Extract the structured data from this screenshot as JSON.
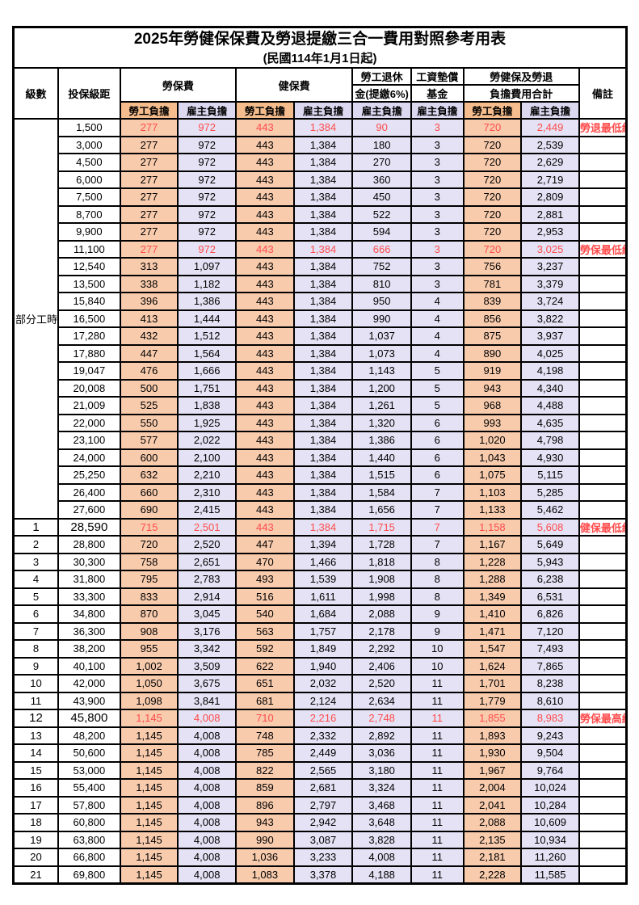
{
  "title": "2025年勞健保保費及勞退提繳三合一費用對照參考用表",
  "subtitle": "(民國114年1月1日起)",
  "header": {
    "level": "級數",
    "bracket": "投保級距",
    "labor_ins": "勞保費",
    "health_ins": "健保費",
    "pension_line1": "勞工退休",
    "pension_line2": "金(提繳6%)",
    "wage_fund_line1": "工資墊償",
    "wage_fund_line2": "基金",
    "total_line1": "勞健保及勞退",
    "total_line2": "負擔費用合計",
    "remark": "備註",
    "employee_burden": "勞工負擔",
    "employer_burden": "雇主負擔"
  },
  "part_time_label": "部分工時",
  "part_time_row_count": 23,
  "colors": {
    "header_employee_bg": "#F5BD8D",
    "header_employer_bg": "#DBD8F0",
    "data_employee_bg": "#F8CBAD",
    "data_employer_bg": "#E4E2F4",
    "highlight_text": "#FF4C4C",
    "border": "#000000"
  },
  "value_column_types": [
    "emp",
    "er",
    "emp",
    "er",
    "er",
    "er",
    "emp",
    "er"
  ],
  "rows": [
    {
      "level": "",
      "salary": "1,500",
      "values": [
        "277",
        "972",
        "443",
        "1,384",
        "90",
        "3",
        "720",
        "2,449"
      ],
      "remark": "勞退最低級距",
      "red": true,
      "big": false
    },
    {
      "level": "",
      "salary": "3,000",
      "values": [
        "277",
        "972",
        "443",
        "1,384",
        "180",
        "3",
        "720",
        "2,539"
      ],
      "remark": "",
      "red": false,
      "big": false
    },
    {
      "level": "",
      "salary": "4,500",
      "values": [
        "277",
        "972",
        "443",
        "1,384",
        "270",
        "3",
        "720",
        "2,629"
      ],
      "remark": "",
      "red": false,
      "big": false
    },
    {
      "level": "",
      "salary": "6,000",
      "values": [
        "277",
        "972",
        "443",
        "1,384",
        "360",
        "3",
        "720",
        "2,719"
      ],
      "remark": "",
      "red": false,
      "big": false
    },
    {
      "level": "",
      "salary": "7,500",
      "values": [
        "277",
        "972",
        "443",
        "1,384",
        "450",
        "3",
        "720",
        "2,809"
      ],
      "remark": "",
      "red": false,
      "big": false
    },
    {
      "level": "",
      "salary": "8,700",
      "values": [
        "277",
        "972",
        "443",
        "1,384",
        "522",
        "3",
        "720",
        "2,881"
      ],
      "remark": "",
      "red": false,
      "big": false
    },
    {
      "level": "",
      "salary": "9,900",
      "values": [
        "277",
        "972",
        "443",
        "1,384",
        "594",
        "3",
        "720",
        "2,953"
      ],
      "remark": "",
      "red": false,
      "big": false
    },
    {
      "level": "",
      "salary": "11,100",
      "values": [
        "277",
        "972",
        "443",
        "1,384",
        "666",
        "3",
        "720",
        "3,025"
      ],
      "remark": "勞保最低級距",
      "red": true,
      "big": false
    },
    {
      "level": "",
      "salary": "12,540",
      "values": [
        "313",
        "1,097",
        "443",
        "1,384",
        "752",
        "3",
        "756",
        "3,237"
      ],
      "remark": "",
      "red": false,
      "big": false
    },
    {
      "level": "",
      "salary": "13,500",
      "values": [
        "338",
        "1,182",
        "443",
        "1,384",
        "810",
        "3",
        "781",
        "3,379"
      ],
      "remark": "",
      "red": false,
      "big": false
    },
    {
      "level": "",
      "salary": "15,840",
      "values": [
        "396",
        "1,386",
        "443",
        "1,384",
        "950",
        "4",
        "839",
        "3,724"
      ],
      "remark": "",
      "red": false,
      "big": false
    },
    {
      "level": "",
      "salary": "16,500",
      "values": [
        "413",
        "1,444",
        "443",
        "1,384",
        "990",
        "4",
        "856",
        "3,822"
      ],
      "remark": "",
      "red": false,
      "big": false
    },
    {
      "level": "",
      "salary": "17,280",
      "values": [
        "432",
        "1,512",
        "443",
        "1,384",
        "1,037",
        "4",
        "875",
        "3,937"
      ],
      "remark": "",
      "red": false,
      "big": false
    },
    {
      "level": "",
      "salary": "17,880",
      "values": [
        "447",
        "1,564",
        "443",
        "1,384",
        "1,073",
        "4",
        "890",
        "4,025"
      ],
      "remark": "",
      "red": false,
      "big": false
    },
    {
      "level": "",
      "salary": "19,047",
      "values": [
        "476",
        "1,666",
        "443",
        "1,384",
        "1,143",
        "5",
        "919",
        "4,198"
      ],
      "remark": "",
      "red": false,
      "big": false
    },
    {
      "level": "",
      "salary": "20,008",
      "values": [
        "500",
        "1,751",
        "443",
        "1,384",
        "1,200",
        "5",
        "943",
        "4,340"
      ],
      "remark": "",
      "red": false,
      "big": false
    },
    {
      "level": "",
      "salary": "21,009",
      "values": [
        "525",
        "1,838",
        "443",
        "1,384",
        "1,261",
        "5",
        "968",
        "4,488"
      ],
      "remark": "",
      "red": false,
      "big": false
    },
    {
      "level": "",
      "salary": "22,000",
      "values": [
        "550",
        "1,925",
        "443",
        "1,384",
        "1,320",
        "6",
        "993",
        "4,635"
      ],
      "remark": "",
      "red": false,
      "big": false
    },
    {
      "level": "",
      "salary": "23,100",
      "values": [
        "577",
        "2,022",
        "443",
        "1,384",
        "1,386",
        "6",
        "1,020",
        "4,798"
      ],
      "remark": "",
      "red": false,
      "big": false
    },
    {
      "level": "",
      "salary": "24,000",
      "values": [
        "600",
        "2,100",
        "443",
        "1,384",
        "1,440",
        "6",
        "1,043",
        "4,930"
      ],
      "remark": "",
      "red": false,
      "big": false
    },
    {
      "level": "",
      "salary": "25,250",
      "values": [
        "632",
        "2,210",
        "443",
        "1,384",
        "1,515",
        "6",
        "1,075",
        "5,115"
      ],
      "remark": "",
      "red": false,
      "big": false
    },
    {
      "level": "",
      "salary": "26,400",
      "values": [
        "660",
        "2,310",
        "443",
        "1,384",
        "1,584",
        "7",
        "1,103",
        "5,285"
      ],
      "remark": "",
      "red": false,
      "big": false
    },
    {
      "level": "",
      "salary": "27,600",
      "values": [
        "690",
        "2,415",
        "443",
        "1,384",
        "1,656",
        "7",
        "1,133",
        "5,462"
      ],
      "remark": "",
      "red": false,
      "big": false
    },
    {
      "level": "1",
      "salary": "28,590",
      "values": [
        "715",
        "2,501",
        "443",
        "1,384",
        "1,715",
        "7",
        "1,158",
        "5,608"
      ],
      "remark": "健保最低級距",
      "red": true,
      "big": true
    },
    {
      "level": "2",
      "salary": "28,800",
      "values": [
        "720",
        "2,520",
        "447",
        "1,394",
        "1,728",
        "7",
        "1,167",
        "5,649"
      ],
      "remark": "",
      "red": false,
      "big": false
    },
    {
      "level": "3",
      "salary": "30,300",
      "values": [
        "758",
        "2,651",
        "470",
        "1,466",
        "1,818",
        "8",
        "1,228",
        "5,943"
      ],
      "remark": "",
      "red": false,
      "big": false
    },
    {
      "level": "4",
      "salary": "31,800",
      "values": [
        "795",
        "2,783",
        "493",
        "1,539",
        "1,908",
        "8",
        "1,288",
        "6,238"
      ],
      "remark": "",
      "red": false,
      "big": false
    },
    {
      "level": "5",
      "salary": "33,300",
      "values": [
        "833",
        "2,914",
        "516",
        "1,611",
        "1,998",
        "8",
        "1,349",
        "6,531"
      ],
      "remark": "",
      "red": false,
      "big": false
    },
    {
      "level": "6",
      "salary": "34,800",
      "values": [
        "870",
        "3,045",
        "540",
        "1,684",
        "2,088",
        "9",
        "1,410",
        "6,826"
      ],
      "remark": "",
      "red": false,
      "big": false
    },
    {
      "level": "7",
      "salary": "36,300",
      "values": [
        "908",
        "3,176",
        "563",
        "1,757",
        "2,178",
        "9",
        "1,471",
        "7,120"
      ],
      "remark": "",
      "red": false,
      "big": false
    },
    {
      "level": "8",
      "salary": "38,200",
      "values": [
        "955",
        "3,342",
        "592",
        "1,849",
        "2,292",
        "10",
        "1,547",
        "7,493"
      ],
      "remark": "",
      "red": false,
      "big": false
    },
    {
      "level": "9",
      "salary": "40,100",
      "values": [
        "1,002",
        "3,509",
        "622",
        "1,940",
        "2,406",
        "10",
        "1,624",
        "7,865"
      ],
      "remark": "",
      "red": false,
      "big": false
    },
    {
      "level": "10",
      "salary": "42,000",
      "values": [
        "1,050",
        "3,675",
        "651",
        "2,032",
        "2,520",
        "11",
        "1,701",
        "8,238"
      ],
      "remark": "",
      "red": false,
      "big": false
    },
    {
      "level": "11",
      "salary": "43,900",
      "values": [
        "1,098",
        "3,841",
        "681",
        "2,124",
        "2,634",
        "11",
        "1,779",
        "8,610"
      ],
      "remark": "",
      "red": false,
      "big": false
    },
    {
      "level": "12",
      "salary": "45,800",
      "values": [
        "1,145",
        "4,008",
        "710",
        "2,216",
        "2,748",
        "11",
        "1,855",
        "8,983"
      ],
      "remark": "勞保最高級距",
      "red": true,
      "big": true
    },
    {
      "level": "13",
      "salary": "48,200",
      "values": [
        "1,145",
        "4,008",
        "748",
        "2,332",
        "2,892",
        "11",
        "1,893",
        "9,243"
      ],
      "remark": "",
      "red": false,
      "big": false
    },
    {
      "level": "14",
      "salary": "50,600",
      "values": [
        "1,145",
        "4,008",
        "785",
        "2,449",
        "3,036",
        "11",
        "1,930",
        "9,504"
      ],
      "remark": "",
      "red": false,
      "big": false
    },
    {
      "level": "15",
      "salary": "53,000",
      "values": [
        "1,145",
        "4,008",
        "822",
        "2,565",
        "3,180",
        "11",
        "1,967",
        "9,764"
      ],
      "remark": "",
      "red": false,
      "big": false
    },
    {
      "level": "16",
      "salary": "55,400",
      "values": [
        "1,145",
        "4,008",
        "859",
        "2,681",
        "3,324",
        "11",
        "2,004",
        "10,024"
      ],
      "remark": "",
      "red": false,
      "big": false
    },
    {
      "level": "17",
      "salary": "57,800",
      "values": [
        "1,145",
        "4,008",
        "896",
        "2,797",
        "3,468",
        "11",
        "2,041",
        "10,284"
      ],
      "remark": "",
      "red": false,
      "big": false
    },
    {
      "level": "18",
      "salary": "60,800",
      "values": [
        "1,145",
        "4,008",
        "943",
        "2,942",
        "3,648",
        "11",
        "2,088",
        "10,609"
      ],
      "remark": "",
      "red": false,
      "big": false
    },
    {
      "level": "19",
      "salary": "63,800",
      "values": [
        "1,145",
        "4,008",
        "990",
        "3,087",
        "3,828",
        "11",
        "2,135",
        "10,934"
      ],
      "remark": "",
      "red": false,
      "big": false
    },
    {
      "level": "20",
      "salary": "66,800",
      "values": [
        "1,145",
        "4,008",
        "1,036",
        "3,233",
        "4,008",
        "11",
        "2,181",
        "11,260"
      ],
      "remark": "",
      "red": false,
      "big": false
    },
    {
      "level": "21",
      "salary": "69,800",
      "values": [
        "1,145",
        "4,008",
        "1,083",
        "3,378",
        "4,188",
        "11",
        "2,228",
        "11,585"
      ],
      "remark": "",
      "red": false,
      "big": false
    }
  ]
}
